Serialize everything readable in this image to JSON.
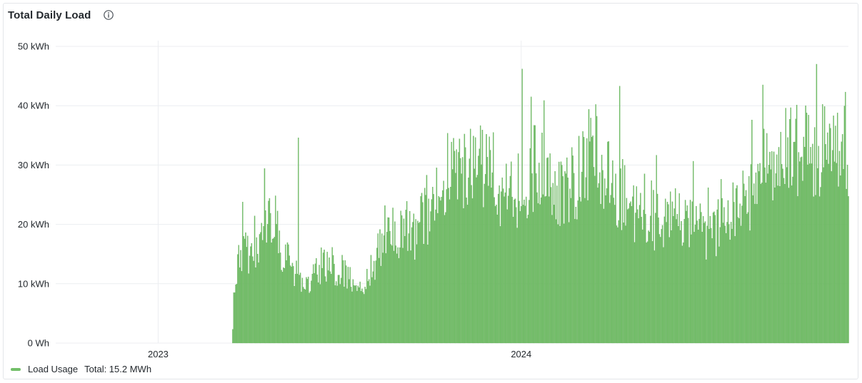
{
  "panel": {
    "title": "Total Daily Load",
    "info_icon": "info-circle-icon"
  },
  "legend": {
    "series_name": "Load Usage",
    "total_text": "Total: 15.2 MWh",
    "color": "#73bf69"
  },
  "colors": {
    "bar": "#73bf69",
    "bar_edge": "#5aa84f",
    "grid": "#eceef1",
    "axis_text": "#24292e"
  },
  "chart_data": {
    "type": "bar",
    "title": "Total Daily Load",
    "series": [
      {
        "name": "Load Usage",
        "x_start": "2023-03-17",
        "x_end": "2024-11-25",
        "interval": "1 day",
        "unit": "kWh",
        "weekly_values_kwh": [
          6,
          17,
          16,
          15,
          18,
          21,
          22,
          17,
          14,
          12,
          11,
          10,
          12,
          14,
          14,
          13,
          12,
          11,
          11,
          10,
          12,
          16,
          20,
          21,
          19,
          20,
          19,
          21,
          23,
          24,
          27,
          28,
          30,
          30,
          31,
          32,
          30,
          29,
          27,
          26,
          26,
          26,
          27,
          28,
          30,
          29,
          28,
          27,
          27,
          28,
          30,
          32,
          34,
          32,
          29,
          27,
          26,
          25,
          23,
          22,
          22,
          21,
          21,
          22,
          23,
          22,
          21,
          19,
          17,
          19,
          21,
          22,
          23,
          24,
          25,
          28,
          31,
          33,
          33,
          35,
          34
        ],
        "peak_values_kwh": [
          {
            "x": "2023-05-22",
            "y": 34.6
          },
          {
            "x": "2024-01-02",
            "y": 46.2
          },
          {
            "x": "2024-04-09",
            "y": 43.3
          },
          {
            "x": "2024-11-10",
            "y": 38.3
          }
        ]
      }
    ],
    "x_ticks": [
      "2023",
      "2024"
    ],
    "y_ticks": [
      "0 Wh",
      "10 kWh",
      "20 kWh",
      "30 kWh",
      "40 kWh",
      "50 kWh"
    ],
    "ylim": [
      0,
      50
    ],
    "xlim": [
      "2022-09-20",
      "2024-11-25"
    ],
    "grid": true,
    "legend_position": "bottom-left"
  }
}
